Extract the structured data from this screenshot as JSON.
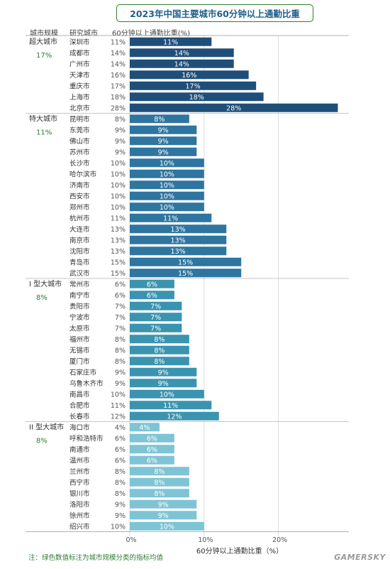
{
  "title": "2023年中国主要城市60分钟以上通勤比重",
  "headers": {
    "scale": "城市规模",
    "city": "研究城市",
    "value": "60分钟以上通勤比重(%)"
  },
  "chart_data": {
    "type": "bar",
    "orientation": "horizontal",
    "xlabel": "60分钟以上通勤比重（%）",
    "xlim": [
      0,
      28
    ],
    "xticks": [
      "0%",
      "10%",
      "20%"
    ],
    "groups": [
      {
        "name": "超大城市",
        "avg": "17%",
        "color": "#1f4e79",
        "cities": [
          "深圳市",
          "成都市",
          "广州市",
          "天津市",
          "重庆市",
          "上海市",
          "北京市"
        ],
        "values": [
          11,
          14,
          14,
          16,
          17,
          18,
          28
        ]
      },
      {
        "name": "特大城市",
        "avg": "11%",
        "color": "#2e75a0",
        "cities": [
          "昆明市",
          "东莞市",
          "佛山市",
          "苏州市",
          "长沙市",
          "哈尔滨市",
          "济南市",
          "西安市",
          "郑州市",
          "杭州市",
          "大连市",
          "南京市",
          "沈阳市",
          "青岛市",
          "武汉市"
        ],
        "values": [
          8,
          9,
          9,
          9,
          10,
          10,
          10,
          10,
          10,
          11,
          13,
          13,
          13,
          15,
          15
        ]
      },
      {
        "name": "I 型大城市",
        "avg": "8%",
        "color": "#3a94b0",
        "cities": [
          "常州市",
          "南宁市",
          "贵阳市",
          "宁波市",
          "太原市",
          "福州市",
          "无锡市",
          "厦门市",
          "石家庄市",
          "乌鲁木齐市",
          "南昌市",
          "合肥市",
          "长春市"
        ],
        "values": [
          6,
          6,
          7,
          7,
          7,
          8,
          8,
          8,
          9,
          9,
          10,
          11,
          12
        ]
      },
      {
        "name": "II 型大城市",
        "avg": "8%",
        "color": "#7ec4d4",
        "cities": [
          "海口市",
          "呼和浩特市",
          "南通市",
          "温州市",
          "兰州市",
          "西宁市",
          "银川市",
          "洛阳市",
          "徐州市",
          "绍兴市"
        ],
        "values": [
          4,
          6,
          6,
          6,
          8,
          8,
          8,
          9,
          9,
          10
        ]
      }
    ]
  },
  "note": "注：绿色数值标注为城市规模分类的指标均值",
  "watermark": "GAMERSKY"
}
